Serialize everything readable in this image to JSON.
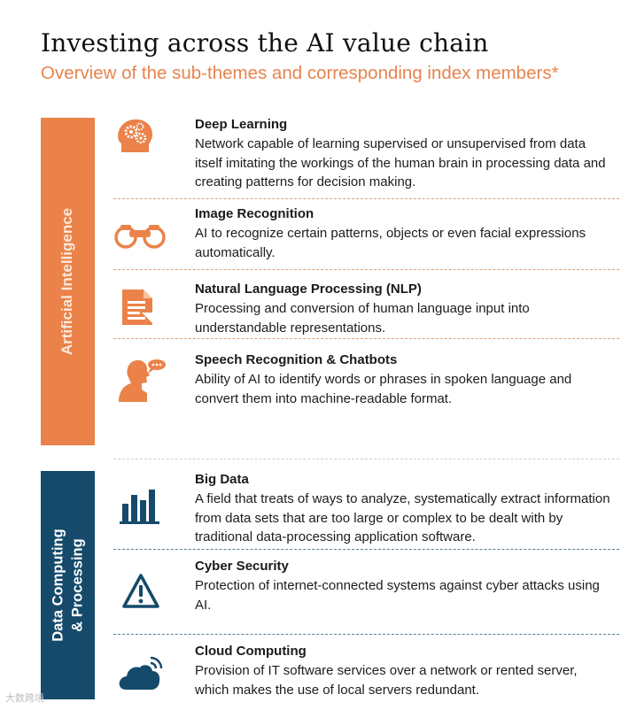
{
  "title": "Investing across the AI value chain",
  "subtitle": "Overview of the sub-themes and corresponding index members*",
  "colors": {
    "orange": "#ea8249",
    "navy": "#154a6b",
    "subtitle": "#e8834d"
  },
  "sections": [
    {
      "label": "Artificial Intelligence",
      "items": [
        {
          "icon": "brain-gears-icon",
          "heading": "Deep Learning",
          "description": "Network capable of learning supervised or unsupervised from data itself imitating the workings of the human brain in processing data and creating patterns for decision making."
        },
        {
          "icon": "binoculars-icon",
          "heading": "Image Recognition",
          "description": "AI to recognize certain patterns, objects or even facial expressions automatically."
        },
        {
          "icon": "document-icon",
          "heading": "Natural Language Processing (NLP)",
          "description": "Processing and conversion of human language input into understandable representations."
        },
        {
          "icon": "speaking-head-icon",
          "heading": "Speech Recognition & Chatbots",
          "description": "Ability of AI to identify words or phrases in spoken language and convert them into machine-readable format."
        }
      ]
    },
    {
      "label_line1": "Data Computing",
      "label_line2": "& Processing",
      "items": [
        {
          "icon": "bar-chart-icon",
          "heading": "Big Data",
          "description": "A field that treats of ways to analyze, systematically extract information from data sets that are too large or complex to be dealt with by traditional data-processing application software."
        },
        {
          "icon": "warning-icon",
          "heading": "Cyber Security",
          "description": "Protection of internet-connected systems against cyber attacks using AI."
        },
        {
          "icon": "cloud-wifi-icon",
          "heading": "Cloud Computing",
          "description": "Provision of IT software services over a network or rented server, which makes the use of local servers redundant."
        }
      ]
    }
  ],
  "watermark": "大数跨境"
}
